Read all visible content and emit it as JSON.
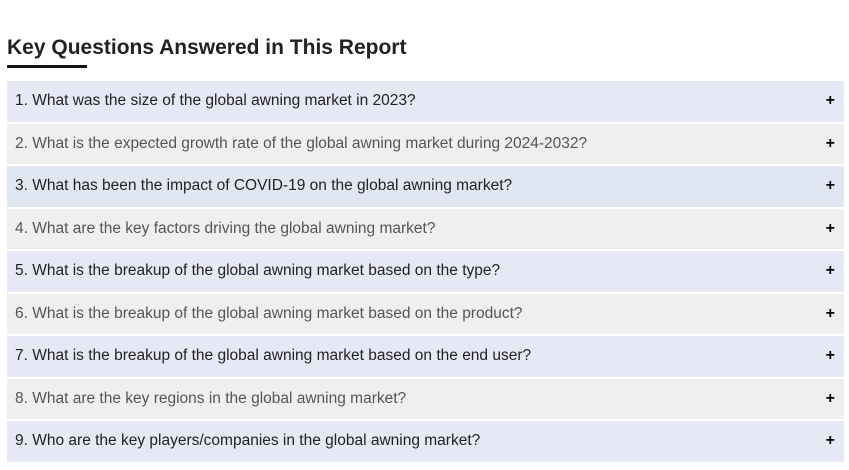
{
  "section": {
    "title": "Key Questions Answered in This Report"
  },
  "questions": [
    "1. What was the size of the global awning market in 2023?",
    "2. What is the expected growth rate of the global awning market during 2024-2032?",
    "3. What has been the impact of COVID-19 on the global awning market?",
    "4. What are the key factors driving the global awning market?",
    "5. What is the breakup of the global awning market based on the type?",
    "6. What is the breakup of the global awning market based on the product?",
    "7. What is the breakup of the global awning market based on the end user?",
    "8. What are the key regions in the global awning market?",
    "9. Who are the key players/companies in the global awning market?"
  ],
  "expand_icon": "+"
}
